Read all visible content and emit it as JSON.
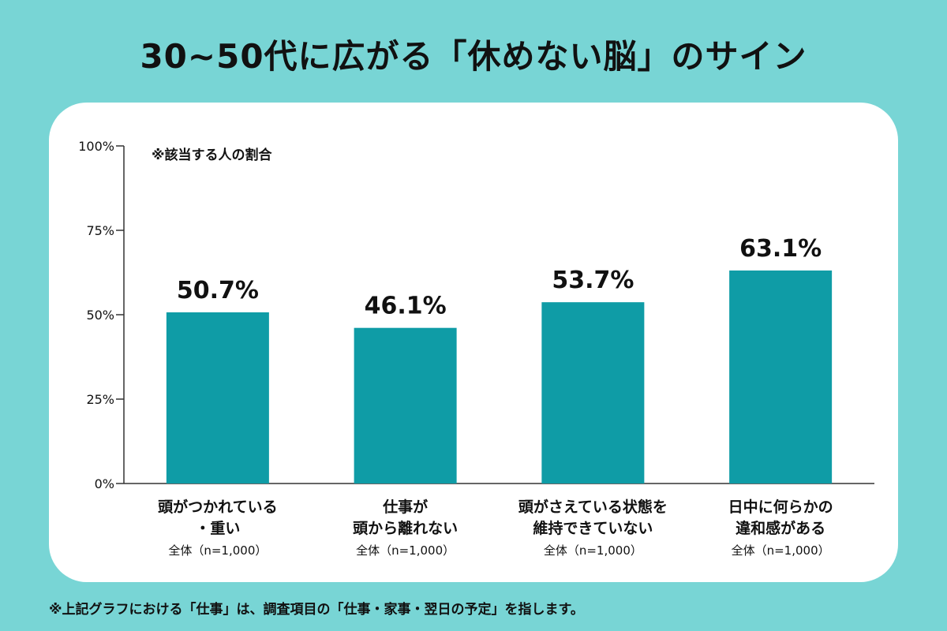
{
  "page": {
    "title": "30~50代に広がる「休めない脳」のサイン",
    "footnote": "※上記グラフにおける「仕事」は、調査項目の「仕事・家事・翌日の予定」を指します。"
  },
  "colors": {
    "background": "#78d5d5",
    "bar": "#0f9ca6",
    "card": "#ffffff",
    "axis": "#333333"
  },
  "chart_data": {
    "type": "bar",
    "note": "※該当する人の割合",
    "categories": [
      {
        "lines": [
          "頭がつかれている",
          "・重い"
        ],
        "sub": "全体（n=1,000）"
      },
      {
        "lines": [
          "仕事が",
          "頭から離れない"
        ],
        "sub": "全体（n=1,000）"
      },
      {
        "lines": [
          "頭がさえている状態を",
          "維持できていない"
        ],
        "sub": "全体（n=1,000）"
      },
      {
        "lines": [
          "日中に何らかの",
          "違和感がある"
        ],
        "sub": "全体（n=1,000）"
      }
    ],
    "values": [
      50.7,
      46.1,
      53.7,
      63.1
    ],
    "value_labels": [
      "50.7%",
      "46.1%",
      "53.7%",
      "63.1%"
    ],
    "yticks": [
      0,
      25,
      50,
      75,
      100
    ],
    "ytick_labels": [
      "0%",
      "25%",
      "50%",
      "75%",
      "100%"
    ],
    "ylim": [
      0,
      100
    ],
    "grid": false
  }
}
